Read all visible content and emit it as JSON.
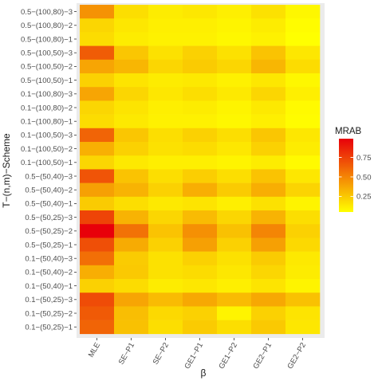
{
  "chart_data": {
    "type": "heatmap",
    "xlabel": "β",
    "ylabel": "T−(n,m)−Scheme",
    "x_categories": [
      "MLE",
      "SE−P1",
      "SE−P2",
      "GE1−P1",
      "GE1−P2",
      "GE2−P1",
      "GE2−P2"
    ],
    "y_categories": [
      "0.5−(100,80)−3",
      "0.5−(100,80)−2",
      "0.5−(100,80)−1",
      "0.5−(100,50)−3",
      "0.5−(100,50)−2",
      "0.5−(100,50)−1",
      "0.1−(100,80)−3",
      "0.1−(100,80)−2",
      "0.1−(100,80)−1",
      "0.1−(100,50)−3",
      "0.1−(100,50)−2",
      "0.1−(100,50)−1",
      "0.5−(50,40)−3",
      "0.5−(50,40)−2",
      "0.5−(50,40)−1",
      "0.5−(50,25)−3",
      "0.5−(50,25)−2",
      "0.5−(50,25)−1",
      "0.1−(50,40)−3",
      "0.1−(50,40)−2",
      "0.1−(50,40)−1",
      "0.1−(50,25)−3",
      "0.1−(50,25)−2",
      "0.1−(50,25)−1"
    ],
    "values": [
      [
        0.45,
        0.17,
        0.12,
        0.14,
        0.11,
        0.16,
        0.08
      ],
      [
        0.2,
        0.14,
        0.11,
        0.11,
        0.09,
        0.12,
        0.06
      ],
      [
        0.18,
        0.12,
        0.1,
        0.1,
        0.08,
        0.1,
        0.05
      ],
      [
        0.65,
        0.26,
        0.16,
        0.22,
        0.16,
        0.27,
        0.14
      ],
      [
        0.38,
        0.32,
        0.2,
        0.24,
        0.2,
        0.32,
        0.18
      ],
      [
        0.22,
        0.15,
        0.12,
        0.13,
        0.1,
        0.14,
        0.08
      ],
      [
        0.38,
        0.2,
        0.14,
        0.17,
        0.13,
        0.2,
        0.11
      ],
      [
        0.2,
        0.15,
        0.11,
        0.12,
        0.09,
        0.13,
        0.07
      ],
      [
        0.18,
        0.13,
        0.1,
        0.1,
        0.08,
        0.11,
        0.06
      ],
      [
        0.62,
        0.26,
        0.17,
        0.22,
        0.17,
        0.26,
        0.14
      ],
      [
        0.34,
        0.22,
        0.16,
        0.18,
        0.14,
        0.22,
        0.12
      ],
      [
        0.2,
        0.13,
        0.11,
        0.11,
        0.09,
        0.12,
        0.07
      ],
      [
        0.68,
        0.27,
        0.17,
        0.23,
        0.17,
        0.27,
        0.14
      ],
      [
        0.4,
        0.33,
        0.22,
        0.35,
        0.24,
        0.35,
        0.21
      ],
      [
        0.24,
        0.17,
        0.13,
        0.15,
        0.11,
        0.16,
        0.09
      ],
      [
        0.74,
        0.33,
        0.2,
        0.3,
        0.2,
        0.33,
        0.17
      ],
      [
        0.99,
        0.57,
        0.27,
        0.46,
        0.28,
        0.5,
        0.22
      ],
      [
        0.7,
        0.36,
        0.22,
        0.4,
        0.22,
        0.4,
        0.19
      ],
      [
        0.58,
        0.24,
        0.16,
        0.22,
        0.16,
        0.24,
        0.13
      ],
      [
        0.35,
        0.25,
        0.16,
        0.18,
        0.14,
        0.2,
        0.12
      ],
      [
        0.22,
        0.18,
        0.12,
        0.14,
        0.11,
        0.15,
        0.09
      ],
      [
        0.71,
        0.38,
        0.3,
        0.37,
        0.3,
        0.37,
        0.28
      ],
      [
        0.66,
        0.29,
        0.19,
        0.22,
        0.09,
        0.22,
        0.15
      ],
      [
        0.62,
        0.28,
        0.17,
        0.24,
        0.17,
        0.25,
        0.14
      ]
    ],
    "legend": {
      "title": "MRAB",
      "ticks": [
        0.25,
        0.5,
        0.75
      ],
      "tick_labels": [
        "0.25",
        "0.50",
        "0.75"
      ],
      "range": [
        0.05,
        0.99
      ],
      "low_color": "#FFFF00",
      "high_color": "#E8000A",
      "placement": "right"
    },
    "panel_background": "#EBEBEB"
  }
}
